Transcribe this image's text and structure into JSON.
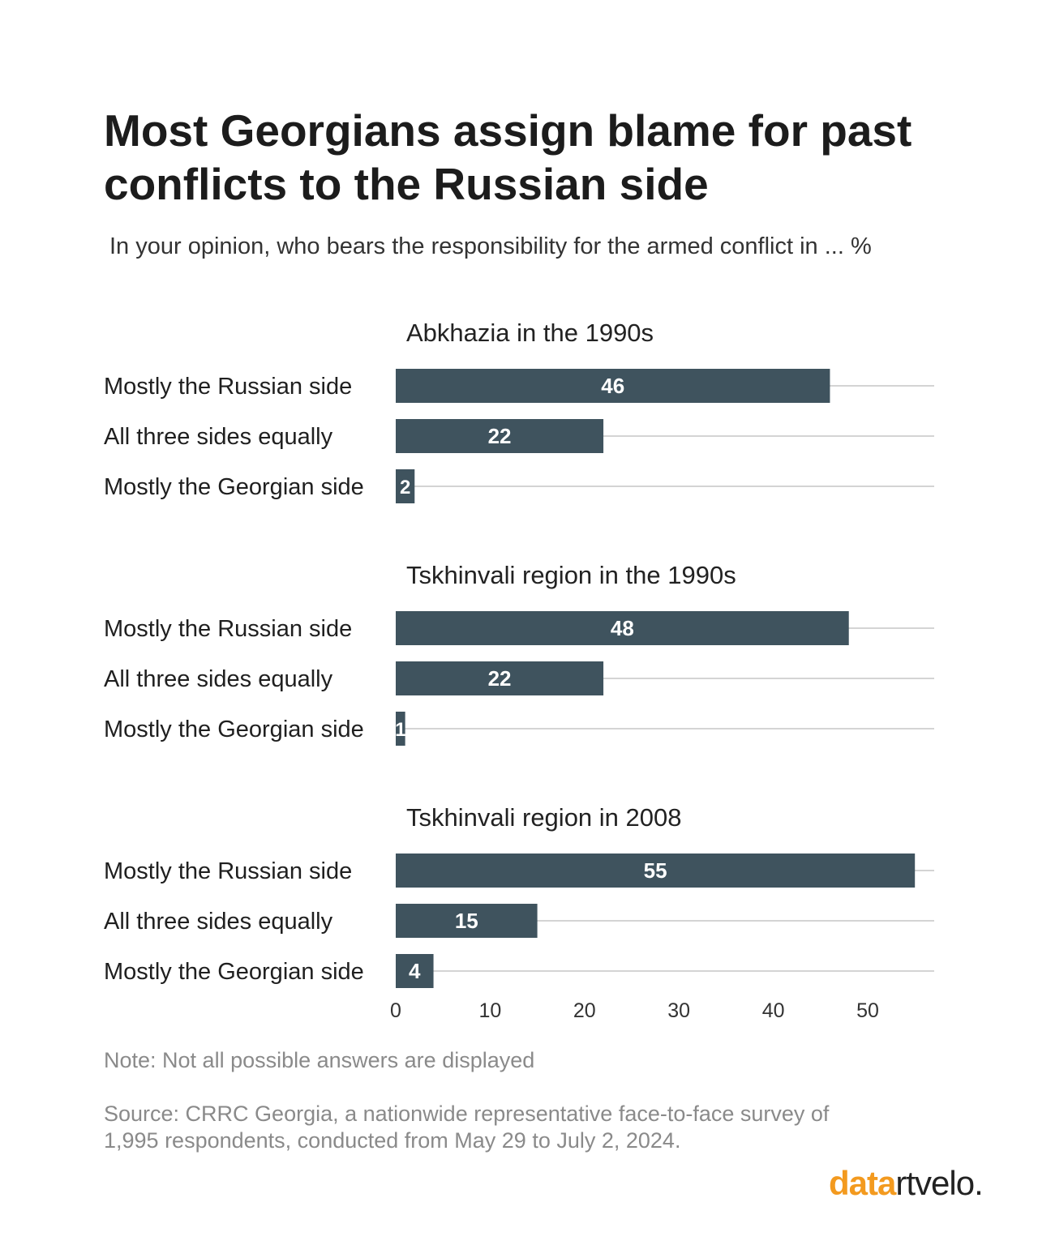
{
  "title": "Most Georgians assign blame for past conflicts to the Russian side",
  "subtitle": "In your opinion, who bears the responsibility for the armed conflict in ... %",
  "note": "Note: Not all possible answers are displayed",
  "source": "Source: CRRC Georgia, a nationwide representative face-to-face survey of 1,995 respondents, conducted from May 29 to July 2, 2024.",
  "logo": {
    "part1": "data",
    "part2": "rtvelo."
  },
  "colors": {
    "bar": "#3f535e",
    "grid": "#d4d4d4",
    "bar_label": "#ffffff",
    "accent": "#f39a1f"
  },
  "chart_data": {
    "type": "bar",
    "orientation": "horizontal",
    "unit": "%",
    "xlim": [
      0,
      57
    ],
    "x_ticks": [
      0,
      10,
      20,
      30,
      40,
      50
    ],
    "grid": "horizontal lines behind bars",
    "categories": [
      "Mostly the Russian side",
      "All three sides equally",
      "Mostly the Georgian side"
    ],
    "panels": [
      {
        "title": "Abkhazia in the 1990s",
        "values": [
          46,
          22,
          2
        ]
      },
      {
        "title": "Tskhinvali region in the 1990s",
        "values": [
          48,
          22,
          1
        ]
      },
      {
        "title": "Tskhinvali region in 2008",
        "values": [
          55,
          15,
          4
        ]
      }
    ]
  }
}
